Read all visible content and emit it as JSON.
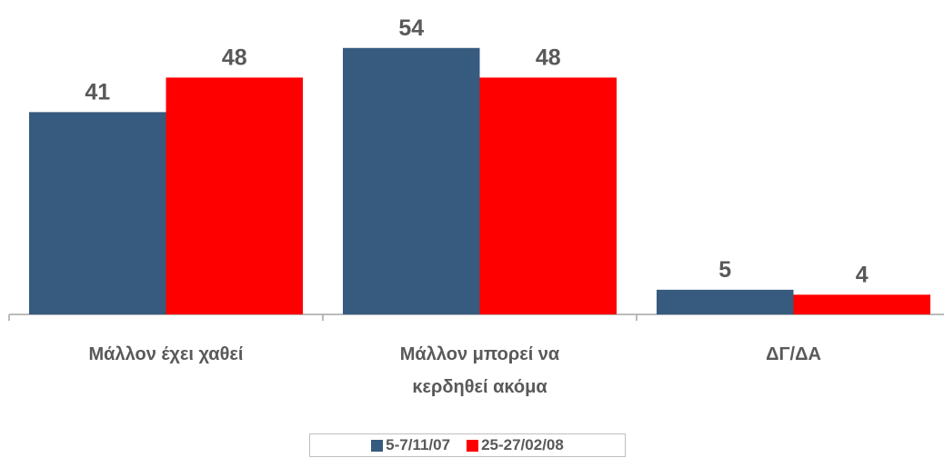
{
  "chart_data": {
    "type": "bar",
    "categories": [
      "Μάλλον έχει χαθεί",
      "Μάλλον μπορεί να κερδηθεί ακόμα",
      "ΔΓ/ΔΑ"
    ],
    "series": [
      {
        "name": "5-7/11/07",
        "color": "#375a7f",
        "values": [
          41,
          54,
          5
        ]
      },
      {
        "name": "25-27/02/08",
        "color": "#ff0000",
        "values": [
          48,
          48,
          4
        ]
      }
    ]
  }
}
